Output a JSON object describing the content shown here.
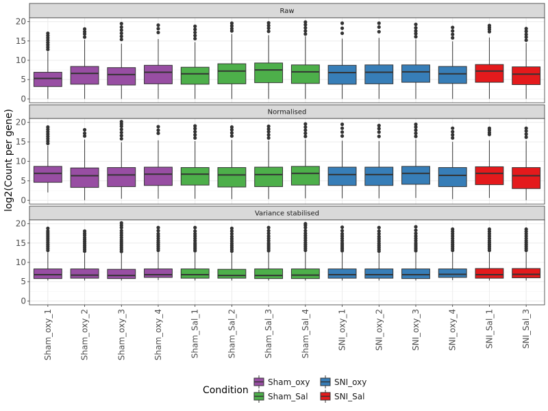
{
  "chart_data": {
    "type": "boxplot",
    "ylabel": "log2(Count per gene)",
    "ylim": [
      -1,
      21
    ],
    "yticks": [
      0,
      5,
      10,
      15,
      20
    ],
    "categories": [
      "Sham_oxy_1",
      "Sham_oxy_2",
      "Sham_oxy_3",
      "Sham_oxy_4",
      "Sham_Sal_1",
      "Sham_Sal_2",
      "Sham_Sal_3",
      "Sham_Sal_4",
      "SNI_oxy_1",
      "SNI_oxy_2",
      "SNI_oxy_3",
      "SNI_oxy_4",
      "SNI_Sal_1",
      "SNI_Sal_3"
    ],
    "conditions": [
      "Sham_oxy",
      "Sham_oxy",
      "Sham_oxy",
      "Sham_oxy",
      "Sham_Sal",
      "Sham_Sal",
      "Sham_Sal",
      "Sham_Sal",
      "SNI_oxy",
      "SNI_oxy",
      "SNI_oxy",
      "SNI_oxy",
      "SNI_Sal",
      "SNI_Sal"
    ],
    "colors": {
      "Sham_oxy": "#984ea3",
      "Sham_Sal": "#4daf4a",
      "SNI_oxy": "#377eb8",
      "SNI_Sal": "#e41a1c"
    },
    "legend": {
      "title": "Condition",
      "position": "bottom",
      "entries": [
        "Sham_oxy",
        "SNI_oxy",
        "Sham_Sal",
        "SNI_Sal"
      ]
    },
    "grid": true,
    "panels": [
      {
        "title": "Raw",
        "series": [
          {
            "min": 0,
            "q1": 3.2,
            "median": 5.3,
            "q3": 6.9,
            "max": 12.2,
            "outliers": [
              12.8,
              13.4,
              14.0,
              14.6,
              15.2,
              15.8,
              16.4,
              17.0
            ]
          },
          {
            "min": 0,
            "q1": 3.8,
            "median": 6.6,
            "q3": 8.4,
            "max": 15.3,
            "outliers": [
              16.0,
              16.8,
              17.4,
              18.1
            ]
          },
          {
            "min": 0,
            "q1": 3.6,
            "median": 6.3,
            "q3": 8.1,
            "max": 14.3,
            "outliers": [
              15.4,
              16.2,
              17.0,
              17.8,
              18.6,
              19.5
            ]
          },
          {
            "min": 0,
            "q1": 3.9,
            "median": 6.9,
            "q3": 8.7,
            "max": 15.5,
            "outliers": [
              17.2,
              18.2,
              19.1
            ]
          },
          {
            "min": 0,
            "q1": 3.8,
            "median": 6.5,
            "q3": 8.2,
            "max": 14.7,
            "outliers": [
              15.6,
              16.4,
              17.2,
              18.0,
              18.8
            ]
          },
          {
            "min": 0,
            "q1": 3.9,
            "median": 7.2,
            "q3": 9.1,
            "max": 16.8,
            "outliers": [
              17.6,
              18.2,
              18.9,
              19.6
            ]
          },
          {
            "min": 0,
            "q1": 4.2,
            "median": 7.5,
            "q3": 9.3,
            "max": 16.5,
            "outliers": [
              17.5,
              18.3,
              19.0,
              19.7
            ]
          },
          {
            "min": 0,
            "q1": 4.0,
            "median": 7.0,
            "q3": 8.8,
            "max": 16.2,
            "outliers": [
              16.8,
              17.6,
              18.4,
              19.2,
              19.9
            ]
          },
          {
            "min": 0,
            "q1": 3.8,
            "median": 6.8,
            "q3": 8.7,
            "max": 15.6,
            "outliers": [
              17.0,
              18.3,
              19.6
            ]
          },
          {
            "min": 0,
            "q1": 3.9,
            "median": 6.9,
            "q3": 8.8,
            "max": 15.8,
            "outliers": [
              17.4,
              18.6,
              19.6
            ]
          },
          {
            "min": 0,
            "q1": 4.3,
            "median": 7.0,
            "q3": 8.8,
            "max": 15.4,
            "outliers": [
              16.1,
              16.9,
              17.6,
              18.4,
              19.3
            ]
          },
          {
            "min": 0,
            "q1": 4.0,
            "median": 6.5,
            "q3": 8.4,
            "max": 14.9,
            "outliers": [
              15.8,
              16.7,
              17.6,
              18.5
            ]
          },
          {
            "min": 0,
            "q1": 4.3,
            "median": 7.2,
            "q3": 8.9,
            "max": 15.9,
            "outliers": [
              17.4,
              18.0,
              18.5,
              19.0
            ]
          },
          {
            "min": 0,
            "q1": 3.7,
            "median": 6.4,
            "q3": 8.3,
            "max": 14.5,
            "outliers": [
              15.2,
              16.0,
              16.7,
              17.5,
              18.2
            ]
          }
        ]
      },
      {
        "title": "Normalised",
        "series": [
          {
            "min": 2.0,
            "q1": 4.6,
            "median": 6.9,
            "q3": 8.7,
            "max": 14.0,
            "outliers": [
              14.6,
              15.2,
              15.8,
              16.4,
              17.0,
              17.6,
              18.2,
              18.8
            ]
          },
          {
            "min": 0,
            "q1": 3.3,
            "median": 6.3,
            "q3": 8.3,
            "max": 15.6,
            "outliers": [
              16.5,
              17.2,
              18.1
            ]
          },
          {
            "min": 0.4,
            "q1": 3.5,
            "median": 6.5,
            "q3": 8.4,
            "max": 14.9,
            "outliers": [
              15.8,
              16.6,
              17.4,
              18.2,
              19.0,
              19.6,
              20.2
            ]
          },
          {
            "min": 0.4,
            "q1": 3.8,
            "median": 6.7,
            "q3": 8.5,
            "max": 15.4,
            "outliers": [
              17.2,
              18.0,
              18.9
            ]
          },
          {
            "min": 0.4,
            "q1": 3.9,
            "median": 6.7,
            "q3": 8.4,
            "max": 15.2,
            "outliers": [
              16.0,
              16.8,
              17.6,
              18.4,
              19.1
            ]
          },
          {
            "min": 0.3,
            "q1": 3.4,
            "median": 6.5,
            "q3": 8.4,
            "max": 15.5,
            "outliers": [
              16.5,
              17.3,
              18.1,
              18.8
            ]
          },
          {
            "min": 0.3,
            "q1": 3.5,
            "median": 6.6,
            "q3": 8.5,
            "max": 15.3,
            "outliers": [
              16.0,
              16.8,
              17.6,
              18.3,
              19.0
            ]
          },
          {
            "min": 0.5,
            "q1": 3.9,
            "median": 6.9,
            "q3": 8.7,
            "max": 15.6,
            "outliers": [
              16.4,
              17.2,
              18.0,
              18.8,
              19.6
            ]
          },
          {
            "min": 0.5,
            "q1": 3.8,
            "median": 6.6,
            "q3": 8.5,
            "max": 15.3,
            "outliers": [
              16.5,
              17.5,
              18.5,
              19.5
            ]
          },
          {
            "min": 0.5,
            "q1": 3.8,
            "median": 6.6,
            "q3": 8.5,
            "max": 15.2,
            "outliers": [
              16.4,
              17.5,
              18.4,
              19.2
            ]
          },
          {
            "min": 0.6,
            "q1": 4.1,
            "median": 6.9,
            "q3": 8.7,
            "max": 15.6,
            "outliers": [
              16.4,
              17.2,
              18.0,
              18.8,
              19.5
            ]
          },
          {
            "min": 0.3,
            "q1": 3.5,
            "median": 6.4,
            "q3": 8.4,
            "max": 15.0,
            "outliers": [
              16.0,
              16.8,
              17.6,
              18.5
            ]
          },
          {
            "min": 0.6,
            "q1": 4.0,
            "median": 6.9,
            "q3": 8.6,
            "max": 15.4,
            "outliers": [
              16.9,
              17.4,
              18.0,
              18.5
            ]
          },
          {
            "min": 0,
            "q1": 3.0,
            "median": 6.3,
            "q3": 8.4,
            "max": 15.3,
            "outliers": [
              16.2,
              17.0,
              17.8,
              18.5
            ]
          }
        ]
      },
      {
        "title": "Variance stabilised",
        "series": [
          {
            "min": 5.3,
            "q1": 5.8,
            "median": 6.8,
            "q3": 8.3,
            "max": 12.6,
            "outliers": [
              13.1,
              13.6,
              14.1,
              14.6,
              15.1,
              15.6,
              16.1,
              16.6,
              17.1,
              17.6,
              18.1,
              18.8
            ]
          },
          {
            "min": 5.3,
            "q1": 5.9,
            "median": 6.7,
            "q3": 8.3,
            "max": 12.4,
            "outliers": [
              12.9,
              13.4,
              13.9,
              14.4,
              14.9,
              15.4,
              15.9,
              16.4,
              17.0,
              17.5,
              18.1
            ]
          },
          {
            "min": 5.3,
            "q1": 5.8,
            "median": 6.6,
            "q3": 8.2,
            "max": 12.3,
            "outliers": [
              12.8,
              13.3,
              13.8,
              14.3,
              14.8,
              15.3,
              15.8,
              16.4,
              17.0,
              17.6,
              18.2,
              19.0,
              19.6,
              20.2
            ]
          },
          {
            "min": 5.4,
            "q1": 6.1,
            "median": 6.8,
            "q3": 8.3,
            "max": 12.6,
            "outliers": [
              13.1,
              13.6,
              14.1,
              14.6,
              15.1,
              15.6,
              16.2,
              16.8,
              17.4,
              18.2,
              19.0
            ]
          },
          {
            "min": 5.3,
            "q1": 5.9,
            "median": 6.8,
            "q3": 8.3,
            "max": 12.5,
            "outliers": [
              13.0,
              13.5,
              14.0,
              14.5,
              15.0,
              15.6,
              16.2,
              16.8,
              17.4,
              18.1,
              19.0
            ]
          },
          {
            "min": 5.3,
            "q1": 5.9,
            "median": 6.6,
            "q3": 8.2,
            "max": 12.4,
            "outliers": [
              12.9,
              13.4,
              13.9,
              14.4,
              14.9,
              15.5,
              16.1,
              16.7,
              17.4,
              18.1,
              18.8
            ]
          },
          {
            "min": 5.3,
            "q1": 5.8,
            "median": 6.6,
            "q3": 8.3,
            "max": 12.5,
            "outliers": [
              13.0,
              13.5,
              14.0,
              14.5,
              15.0,
              15.6,
              16.2,
              16.8,
              17.5,
              18.2,
              19.0
            ]
          },
          {
            "min": 5.3,
            "q1": 5.8,
            "median": 6.7,
            "q3": 8.3,
            "max": 12.6,
            "outliers": [
              13.1,
              13.6,
              14.1,
              14.6,
              15.1,
              15.7,
              16.3,
              16.9,
              17.5,
              18.2,
              19.0,
              19.6,
              20.0
            ]
          },
          {
            "min": 5.3,
            "q1": 5.9,
            "median": 6.8,
            "q3": 8.3,
            "max": 12.5,
            "outliers": [
              13.0,
              13.5,
              14.0,
              14.5,
              15.0,
              15.6,
              16.2,
              16.8,
              17.4,
              18.2,
              19.1
            ]
          },
          {
            "min": 5.3,
            "q1": 5.9,
            "median": 6.8,
            "q3": 8.3,
            "max": 12.4,
            "outliers": [
              12.9,
              13.4,
              13.9,
              14.4,
              14.9,
              15.5,
              16.1,
              16.7,
              17.4,
              18.1,
              19.0
            ]
          },
          {
            "min": 5.3,
            "q1": 5.8,
            "median": 6.8,
            "q3": 8.3,
            "max": 12.5,
            "outliers": [
              13.0,
              13.5,
              14.0,
              14.5,
              15.0,
              15.6,
              16.2,
              16.8,
              17.5,
              18.3,
              19.2
            ]
          },
          {
            "min": 5.4,
            "q1": 6.1,
            "median": 6.9,
            "q3": 8.3,
            "max": 12.6,
            "outliers": [
              13.1,
              13.6,
              14.1,
              14.6,
              15.1,
              15.6,
              16.2,
              16.8,
              17.4,
              18.0,
              18.6
            ]
          },
          {
            "min": 5.3,
            "q1": 5.9,
            "median": 6.8,
            "q3": 8.4,
            "max": 12.6,
            "outliers": [
              13.1,
              13.6,
              14.1,
              14.6,
              15.1,
              15.6,
              16.2,
              16.8,
              17.4,
              18.0,
              18.6
            ]
          },
          {
            "min": 5.3,
            "q1": 6.0,
            "median": 6.9,
            "q3": 8.4,
            "max": 12.6,
            "outliers": [
              13.1,
              13.6,
              14.1,
              14.6,
              15.1,
              15.6,
              16.2,
              16.8,
              17.4,
              18.0,
              18.6
            ]
          }
        ]
      }
    ]
  }
}
